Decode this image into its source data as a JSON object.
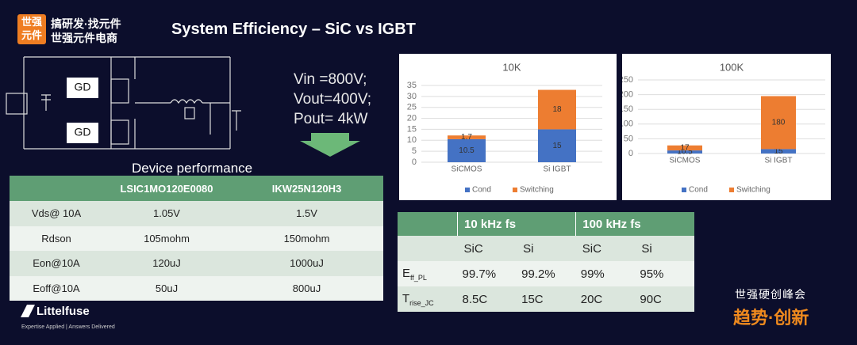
{
  "logo": {
    "badge": [
      "世强",
      "元件"
    ],
    "line1": "搞研发·找元件",
    "line2": "世强元件电商"
  },
  "title": "System Efficiency – SiC vs IGBT",
  "circuit": {
    "gd": [
      "GD",
      "GD"
    ]
  },
  "conditions": [
    "Vin =800V;",
    "Vout=400V;",
    "Pout= 4kW"
  ],
  "device_table": {
    "caption": "Device performance",
    "header": [
      "LSIC1MO120E0080",
      "IKW25N120H3"
    ],
    "rows": [
      [
        "Vds@ 10A",
        "1.05V",
        "1.5V"
      ],
      [
        "Rdson",
        "105mohm",
        "150mohm"
      ],
      [
        "Eon@10A",
        "120uJ",
        "1000uJ"
      ],
      [
        "Eoff@10A",
        "50uJ",
        "800uJ"
      ]
    ]
  },
  "chart_data": [
    {
      "type": "bar",
      "stacked": true,
      "title": "10K",
      "categories": [
        "SiCMOS",
        "Si IGBT"
      ],
      "series": [
        {
          "name": "Cond",
          "color": "#4472c4",
          "values": [
            10.5,
            15
          ]
        },
        {
          "name": "Switching",
          "color": "#ed7d31",
          "values": [
            1.7,
            18
          ]
        }
      ],
      "ylim": [
        0,
        35
      ],
      "yticks": [
        0,
        5,
        10,
        15,
        20,
        25,
        30,
        35
      ],
      "grid": true,
      "legend": "bottom"
    },
    {
      "type": "bar",
      "stacked": true,
      "title": "100K",
      "categories": [
        "SiCMOS",
        "Si IGBT"
      ],
      "series": [
        {
          "name": "Cond",
          "color": "#4472c4",
          "values": [
            10.5,
            15
          ]
        },
        {
          "name": "Switching",
          "color": "#ed7d31",
          "values": [
            17,
            180
          ]
        }
      ],
      "ylim": [
        0,
        250
      ],
      "yticks": [
        0,
        50,
        100,
        150,
        200,
        250
      ],
      "grid": true,
      "legend": "bottom"
    }
  ],
  "efficiency_table": {
    "groups": [
      "10 kHz fs",
      "100 kHz fs"
    ],
    "subheader": [
      "SiC",
      "Si",
      "SiC",
      "Si"
    ],
    "rows": [
      {
        "label": "E",
        "sub": "ff_PL",
        "cells": [
          "99.7%",
          "99.2%",
          "99%",
          "95%"
        ]
      },
      {
        "label": "T",
        "sub": "rise_JC",
        "cells": [
          "8.5C",
          "15C",
          "20C",
          "90C"
        ]
      }
    ]
  },
  "footer": {
    "brand": "Littelfuse",
    "tagline": "Expertise Applied | Answers Delivered",
    "event": "世强硬创峰会",
    "slogan": "趋势·创新"
  }
}
